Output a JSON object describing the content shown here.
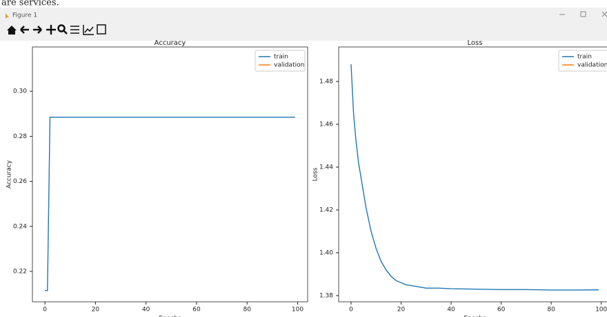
{
  "background_text": "are services.",
  "window": {
    "title": "Figure 1"
  },
  "chart_data": [
    {
      "type": "line",
      "title": "Accuracy",
      "xlabel": "Epochs",
      "ylabel": "Accuracy",
      "x": [
        0,
        1,
        2,
        99
      ],
      "series": [
        {
          "name": "train",
          "color": "#1f77b4",
          "values": [
            0.2115,
            0.2115,
            0.2885,
            0.2885
          ]
        },
        {
          "name": "validation",
          "color": "#ff7f0e",
          "values": [
            null,
            null,
            null,
            null
          ]
        }
      ],
      "xlim": [
        -4.95,
        103.95
      ],
      "xticks": [
        0,
        20,
        40,
        60,
        80,
        100
      ],
      "ylim": [
        0.2065,
        0.3197
      ],
      "yticks": [
        0.22,
        0.24,
        0.26,
        0.28,
        {
          "value": 0.3,
          "label": "0.30"
        }
      ],
      "legend": "upper right"
    },
    {
      "type": "line",
      "title": "Loss",
      "xlabel": "Epochs",
      "ylabel": "Loss",
      "x": [
        0,
        1,
        2,
        3,
        4,
        5,
        6,
        8,
        10,
        12,
        14,
        16,
        18,
        20,
        22,
        25,
        30,
        35,
        40,
        50,
        60,
        70,
        80,
        90,
        99
      ],
      "series": [
        {
          "name": "train",
          "color": "#1f77b4",
          "values": [
            1.488,
            1.465,
            1.452,
            1.442,
            1.435,
            1.428,
            1.421,
            1.41,
            1.402,
            1.396,
            1.392,
            1.389,
            1.387,
            1.386,
            1.385,
            1.3845,
            1.3835,
            1.3835,
            1.3832,
            1.383,
            1.3828,
            1.3828,
            1.3826,
            1.3826,
            1.3827
          ]
        },
        {
          "name": "validation",
          "color": "#ff7f0e",
          "values": [
            null,
            null,
            null,
            null,
            null,
            null,
            null,
            null,
            null,
            null,
            null,
            null,
            null,
            null,
            null,
            null,
            null,
            null,
            null,
            null,
            null,
            null,
            null,
            null,
            null
          ]
        }
      ],
      "xlim": [
        -4.95,
        103.95
      ],
      "xticks": [
        0,
        20,
        40,
        60,
        80,
        100
      ],
      "ylim": [
        1.3771,
        1.4961
      ],
      "yticks": [
        1.38,
        {
          "value": 1.4,
          "label": "1.40"
        },
        1.42,
        1.44,
        1.46,
        1.48
      ],
      "legend": "upper right"
    }
  ]
}
